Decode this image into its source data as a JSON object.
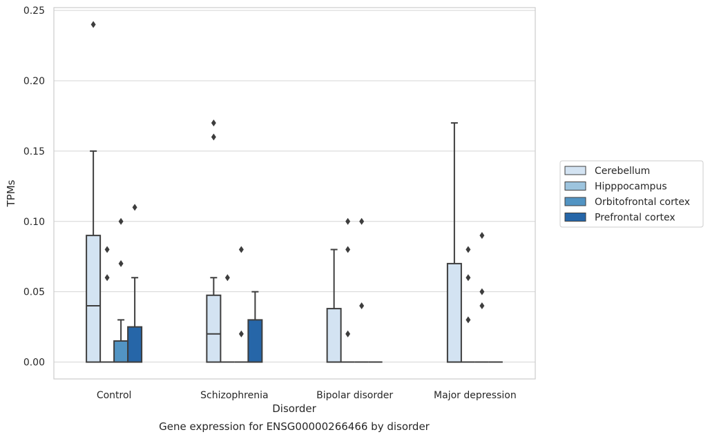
{
  "chart_data": {
    "type": "box",
    "title": "",
    "caption": "Gene expression for ENSG00000266466 by disorder",
    "xlabel": "Disorder",
    "ylabel": "TPMs",
    "ylim": [
      -0.012,
      0.252
    ],
    "yticks": [
      0.0,
      0.05,
      0.1,
      0.15,
      0.2,
      0.25
    ],
    "ytick_labels": [
      "0.00",
      "0.05",
      "0.10",
      "0.15",
      "0.20",
      "0.25"
    ],
    "grid": true,
    "legend_position": "right",
    "categories": [
      "Control",
      "Schizophrenia",
      "Bipolar disorder",
      "Major depression"
    ],
    "series": [
      {
        "name": "Cerebellum",
        "color": "#d3e3f2",
        "boxes": [
          {
            "q1": 0,
            "median": 0.04,
            "q3": 0.09,
            "whisker_low": 0,
            "whisker_high": 0.15,
            "outliers": [
              0.24
            ]
          },
          {
            "q1": 0,
            "median": 0.02,
            "q3": 0.0475,
            "whisker_low": 0,
            "whisker_high": 0.06,
            "outliers": [
              0.16,
              0.17
            ]
          },
          {
            "q1": 0,
            "median": 0,
            "q3": 0.038,
            "whisker_low": 0,
            "whisker_high": 0.08,
            "outliers": []
          },
          {
            "q1": 0,
            "median": 0,
            "q3": 0.07,
            "whisker_low": 0,
            "whisker_high": 0.17,
            "outliers": []
          }
        ]
      },
      {
        "name": "Hipppocampus",
        "color": "#9dc4de",
        "boxes": [
          {
            "q1": 0,
            "median": 0,
            "q3": 0,
            "whisker_low": 0,
            "whisker_high": 0,
            "outliers": [
              0.06,
              0.08
            ]
          },
          {
            "q1": 0,
            "median": 0,
            "q3": 0,
            "whisker_low": 0,
            "whisker_high": 0,
            "outliers": [
              0.06
            ]
          },
          {
            "q1": 0,
            "median": 0,
            "q3": 0,
            "whisker_low": 0,
            "whisker_high": 0,
            "outliers": [
              0.02,
              0.08,
              0.1
            ]
          },
          {
            "q1": 0,
            "median": 0,
            "q3": 0,
            "whisker_low": 0,
            "whisker_high": 0,
            "outliers": [
              0.03,
              0.06,
              0.08
            ]
          }
        ]
      },
      {
        "name": "Orbitofrontal cortex",
        "color": "#5294c3",
        "boxes": [
          {
            "q1": 0,
            "median": 0,
            "q3": 0.015,
            "whisker_low": 0,
            "whisker_high": 0.03,
            "outliers": [
              0.07,
              0.1
            ]
          },
          {
            "q1": 0,
            "median": 0,
            "q3": 0,
            "whisker_low": 0,
            "whisker_high": 0,
            "outliers": [
              0.02,
              0.08
            ]
          },
          {
            "q1": 0,
            "median": 0,
            "q3": 0,
            "whisker_low": 0,
            "whisker_high": 0,
            "outliers": [
              0.04,
              0.1
            ]
          },
          {
            "q1": 0,
            "median": 0,
            "q3": 0,
            "whisker_low": 0,
            "whisker_high": 0,
            "outliers": [
              0.04,
              0.05,
              0.09
            ]
          }
        ]
      },
      {
        "name": "Prefrontal cortex",
        "color": "#2666a8",
        "boxes": [
          {
            "q1": 0,
            "median": 0,
            "q3": 0.025,
            "whisker_low": 0,
            "whisker_high": 0.06,
            "outliers": [
              0.11
            ]
          },
          {
            "q1": 0,
            "median": 0,
            "q3": 0.03,
            "whisker_low": 0,
            "whisker_high": 0.05,
            "outliers": []
          },
          {
            "q1": 0,
            "median": 0,
            "q3": 0,
            "whisker_low": 0,
            "whisker_high": 0,
            "outliers": []
          },
          {
            "q1": 0,
            "median": 0,
            "q3": 0,
            "whisker_low": 0,
            "whisker_high": 0,
            "outliers": []
          }
        ]
      }
    ]
  }
}
